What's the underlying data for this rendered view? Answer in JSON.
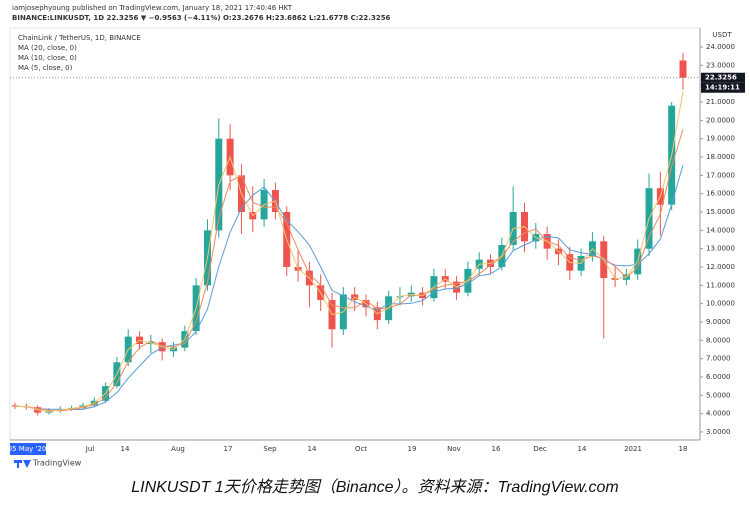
{
  "header": {
    "publisher": "iamjosephyoung published on TradingView.com, January 18, 2021 17:40:46 HKT",
    "symbol_line": "BINANCE:LINKUSDT, 1D  22.3256 ▼ −0.9563 (−4.11%) O:23.2676 H:23.6862 L:21.6778 C:22.3256"
  },
  "chart_data": {
    "type": "candlestick",
    "title": "ChainLink / TetherUS, 1D, BINANCE",
    "unit": "USDT",
    "last_time": "14:19:11",
    "xtick_labels": [
      "05 May '20",
      "Jul",
      "14",
      "Aug",
      "17",
      "Sep",
      "14",
      "Oct",
      "19",
      "Nov",
      "16",
      "Dec",
      "14",
      "2021",
      "18"
    ],
    "up_color": "#26a69a",
    "down_color": "#ef5350",
    "candles": {
      "open": [
        4.45,
        4.4,
        4.35,
        4.05,
        4.15,
        4.25,
        4.3,
        4.45,
        4.7,
        5.5,
        6.8,
        8.2,
        7.8,
        7.9,
        7.4,
        7.6,
        8.5,
        11.0,
        14.0,
        19.0,
        17.0,
        15.0,
        14.6,
        16.2,
        15.0,
        12.0,
        11.8,
        11.0,
        10.2,
        8.6,
        10.5,
        10.2,
        9.8,
        9.1,
        10.4,
        10.4,
        10.6,
        10.3,
        11.5,
        11.2,
        10.6,
        11.9,
        12.4,
        12.0,
        13.2,
        15.0,
        13.4,
        13.8,
        13.0,
        12.7,
        11.8,
        12.6,
        13.4,
        11.4,
        11.3,
        11.6,
        13.0,
        16.3,
        15.4,
        23.2676
      ],
      "high": [
        4.6,
        4.55,
        4.45,
        4.3,
        4.4,
        4.45,
        4.6,
        4.9,
        5.7,
        7.1,
        8.6,
        8.5,
        8.3,
        8.1,
        7.9,
        8.8,
        11.4,
        14.6,
        20.1,
        19.8,
        17.6,
        16.4,
        16.8,
        16.6,
        15.3,
        12.9,
        12.3,
        11.6,
        10.6,
        10.9,
        10.9,
        10.5,
        10.1,
        10.7,
        10.9,
        11.0,
        10.9,
        11.9,
        11.9,
        11.5,
        12.3,
        12.8,
        12.7,
        13.6,
        16.4,
        15.5,
        14.4,
        14.2,
        13.5,
        13.1,
        13.0,
        13.9,
        13.7,
        12.0,
        11.9,
        13.5,
        17.1,
        17.2,
        21.0,
        23.6862
      ],
      "low": [
        4.25,
        4.2,
        3.9,
        3.95,
        4.05,
        4.15,
        4.2,
        4.35,
        4.6,
        5.4,
        6.6,
        7.5,
        7.3,
        6.9,
        7.1,
        7.4,
        8.3,
        10.7,
        13.6,
        16.2,
        13.8,
        13.9,
        14.2,
        14.6,
        11.5,
        11.2,
        9.8,
        9.6,
        7.6,
        8.3,
        9.6,
        9.3,
        8.6,
        8.9,
        9.9,
        10.1,
        9.9,
        10.1,
        10.8,
        10.2,
        10.4,
        11.5,
        11.6,
        11.8,
        12.9,
        12.8,
        13.0,
        12.4,
        12.1,
        11.3,
        11.5,
        12.3,
        8.1,
        10.9,
        11.0,
        11.3,
        12.6,
        13.7,
        15.1,
        21.6778
      ],
      "close": [
        4.4,
        4.35,
        4.05,
        4.15,
        4.25,
        4.3,
        4.45,
        4.7,
        5.5,
        6.8,
        8.2,
        7.8,
        7.9,
        7.4,
        7.6,
        8.5,
        11.0,
        14.0,
        19.0,
        17.0,
        15.0,
        14.6,
        16.2,
        15.0,
        12.0,
        11.8,
        11.0,
        10.2,
        8.6,
        10.5,
        10.2,
        9.8,
        9.1,
        10.4,
        10.4,
        10.6,
        10.3,
        11.5,
        11.2,
        10.6,
        11.9,
        12.4,
        12.0,
        13.2,
        15.0,
        13.4,
        13.8,
        13.0,
        12.7,
        11.8,
        12.6,
        13.4,
        11.4,
        11.3,
        11.6,
        13.0,
        16.3,
        15.4,
        20.8,
        22.3256
      ]
    },
    "series": [
      {
        "name": "MA (20, close, 0)",
        "color": "#5b9bd5",
        "values": [
          4.4,
          4.38,
          4.27,
          4.24,
          4.24,
          4.22,
          4.24,
          4.37,
          4.64,
          5.15,
          5.93,
          6.6,
          7.24,
          7.62,
          7.74,
          7.84,
          8.48,
          9.7,
          12.02,
          13.9,
          15.2,
          15.92,
          16.36,
          15.56,
          14.56,
          13.92,
          13.2,
          12.0,
          10.72,
          10.42,
          10.1,
          9.86,
          9.64,
          10.0,
          9.98,
          10.02,
          10.16,
          10.64,
          10.8,
          10.84,
          11.1,
          11.52,
          11.62,
          12.02,
          12.9,
          13.2,
          13.48,
          13.68,
          13.58,
          12.94,
          12.78,
          12.7,
          12.38,
          12.1,
          12.06,
          12.14,
          12.72,
          13.52,
          15.42,
          17.57
        ]
      },
      {
        "name": "MA (10, close, 0)",
        "color": "#ef8a62",
        "values": [
          4.4,
          4.38,
          4.27,
          4.18,
          4.15,
          4.23,
          4.33,
          4.48,
          4.88,
          5.67,
          6.83,
          7.6,
          7.97,
          7.7,
          7.63,
          7.83,
          9.03,
          11.17,
          14.67,
          16.67,
          17.0,
          15.53,
          15.27,
          15.27,
          14.4,
          12.93,
          11.6,
          11.0,
          9.93,
          9.77,
          9.77,
          10.17,
          9.7,
          9.77,
          9.97,
          10.47,
          10.43,
          10.8,
          11.0,
          11.1,
          11.23,
          11.63,
          12.1,
          12.53,
          13.4,
          13.87,
          14.07,
          13.4,
          13.17,
          12.5,
          12.37,
          12.6,
          12.47,
          12.03,
          11.43,
          11.97,
          13.63,
          14.9,
          17.5,
          19.51
        ]
      },
      {
        "name": "MA (5, close, 0)",
        "color": "#f4c56a",
        "values": [
          4.4,
          4.38,
          4.2,
          4.1,
          4.2,
          4.28,
          4.38,
          4.58,
          5.1,
          6.15,
          7.5,
          8.0,
          7.85,
          7.65,
          7.5,
          8.05,
          9.75,
          12.5,
          16.5,
          18.0,
          16.0,
          14.8,
          15.4,
          15.6,
          13.5,
          11.9,
          11.4,
          10.6,
          9.4,
          9.55,
          10.35,
          10.0,
          9.45,
          9.75,
          10.4,
          10.5,
          10.45,
          10.9,
          11.35,
          10.9,
          11.25,
          12.15,
          12.2,
          12.6,
          14.1,
          14.2,
          13.6,
          13.4,
          12.85,
          12.25,
          12.2,
          13.0,
          12.4,
          11.35,
          11.45,
          12.3,
          14.65,
          15.85,
          18.1,
          21.57
        ]
      }
    ],
    "ylim": [
      2.56,
      25.04
    ],
    "yticks": [
      {
        "value": 3,
        "label": "3.0000"
      },
      {
        "value": 4,
        "label": "4.0000"
      },
      {
        "value": 5,
        "label": "5.0000"
      },
      {
        "value": 6,
        "label": "6.0000"
      },
      {
        "value": 7,
        "label": "7.0000"
      },
      {
        "value": 8,
        "label": "8.0000"
      },
      {
        "value": 9,
        "label": "9.0000"
      },
      {
        "value": 10,
        "label": "10.0000"
      },
      {
        "value": 11,
        "label": "11.0000"
      },
      {
        "value": 12,
        "label": "12.0000"
      },
      {
        "value": 13,
        "label": "13.0000"
      },
      {
        "value": 14,
        "label": "14.0000"
      },
      {
        "value": 15,
        "label": "15.0000"
      },
      {
        "value": 16,
        "label": "16.0000"
      },
      {
        "value": 17,
        "label": "17.0000"
      },
      {
        "value": 18,
        "label": "18.0000"
      },
      {
        "value": 19,
        "label": "19.0000"
      },
      {
        "value": 20,
        "label": "20.0000"
      },
      {
        "value": 21,
        "label": "21.0000"
      },
      {
        "value": 23,
        "label": "23.0000"
      },
      {
        "value": 24,
        "label": "24.0000"
      }
    ],
    "grid": false
  },
  "footer": {
    "logo": "TradingView",
    "caption": "LINKUSDT 1天价格走势图（Binance）。资料来源：TradingView.com"
  }
}
